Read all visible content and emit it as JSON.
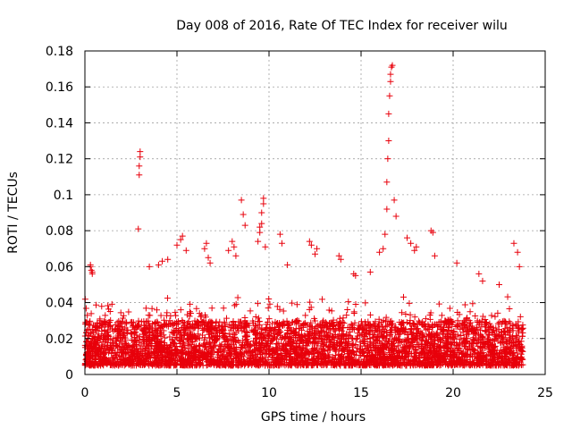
{
  "chart_data": {
    "type": "scatter",
    "title": "Day 008 of 2016, Rate Of TEC Index for receiver wilu",
    "xlabel": "GPS time / hours",
    "ylabel": "ROTI / TECUs",
    "xlim": [
      0,
      25
    ],
    "ylim": [
      0,
      0.18
    ],
    "grid": true,
    "marker": "+",
    "xticks": [
      0,
      5,
      10,
      15,
      20,
      25
    ],
    "xtick_labels": [
      "0",
      "5",
      "10",
      "15",
      "20",
      "25"
    ],
    "yticks": [
      0,
      0.02,
      0.04,
      0.06,
      0.08,
      0.1,
      0.12,
      0.14,
      0.16,
      0.18
    ],
    "ytick_labels": [
      "0",
      "0.02",
      "0.04",
      "0.06",
      "0.08",
      "0.1",
      "0.12",
      "0.14",
      "0.16",
      "0.18"
    ],
    "colors": {
      "points": "#e8000b",
      "grid": "#a0a0a0",
      "axis": "#000000"
    },
    "band": {
      "x_range": [
        0,
        23.8
      ],
      "typical_range": [
        0.005,
        0.03
      ],
      "note": "dense cloud of points across all hours"
    },
    "series": [
      {
        "name": "ROTI",
        "x": [
          0.3,
          0.3,
          0.35,
          0.4,
          0.4,
          2.9,
          2.95,
          2.95,
          3.0,
          3.0,
          3.5,
          4.0,
          4.2,
          4.5,
          5.0,
          5.2,
          5.3,
          5.5,
          6.5,
          6.6,
          6.7,
          6.8,
          7.8,
          8.0,
          8.1,
          8.2,
          8.5,
          8.6,
          8.7,
          9.4,
          9.5,
          9.5,
          9.6,
          9.6,
          9.7,
          9.7,
          9.8,
          10.6,
          10.7,
          11.0,
          12.2,
          12.3,
          12.5,
          12.6,
          13.8,
          13.9,
          14.6,
          14.7,
          15.5,
          16.0,
          16.2,
          16.3,
          16.4,
          16.4,
          16.45,
          16.5,
          16.5,
          16.55,
          16.6,
          16.6,
          16.65,
          16.7,
          16.8,
          16.9,
          17.5,
          17.7,
          17.9,
          18.0,
          18.8,
          18.9,
          19.0,
          20.2,
          21.4,
          21.6,
          22.5,
          23.3,
          23.5,
          23.6
        ],
        "y": [
          0.061,
          0.06,
          0.058,
          0.057,
          0.056,
          0.081,
          0.111,
          0.116,
          0.121,
          0.124,
          0.06,
          0.061,
          0.063,
          0.064,
          0.072,
          0.075,
          0.077,
          0.069,
          0.07,
          0.073,
          0.065,
          0.062,
          0.069,
          0.074,
          0.071,
          0.066,
          0.097,
          0.089,
          0.083,
          0.074,
          0.079,
          0.082,
          0.084,
          0.09,
          0.095,
          0.098,
          0.071,
          0.078,
          0.073,
          0.061,
          0.074,
          0.072,
          0.067,
          0.07,
          0.066,
          0.064,
          0.056,
          0.055,
          0.057,
          0.068,
          0.07,
          0.078,
          0.092,
          0.107,
          0.12,
          0.13,
          0.145,
          0.155,
          0.163,
          0.167,
          0.171,
          0.172,
          0.097,
          0.088,
          0.076,
          0.073,
          0.069,
          0.071,
          0.08,
          0.079,
          0.066,
          0.062,
          0.056,
          0.052,
          0.05,
          0.073,
          0.068,
          0.06
        ]
      }
    ]
  }
}
